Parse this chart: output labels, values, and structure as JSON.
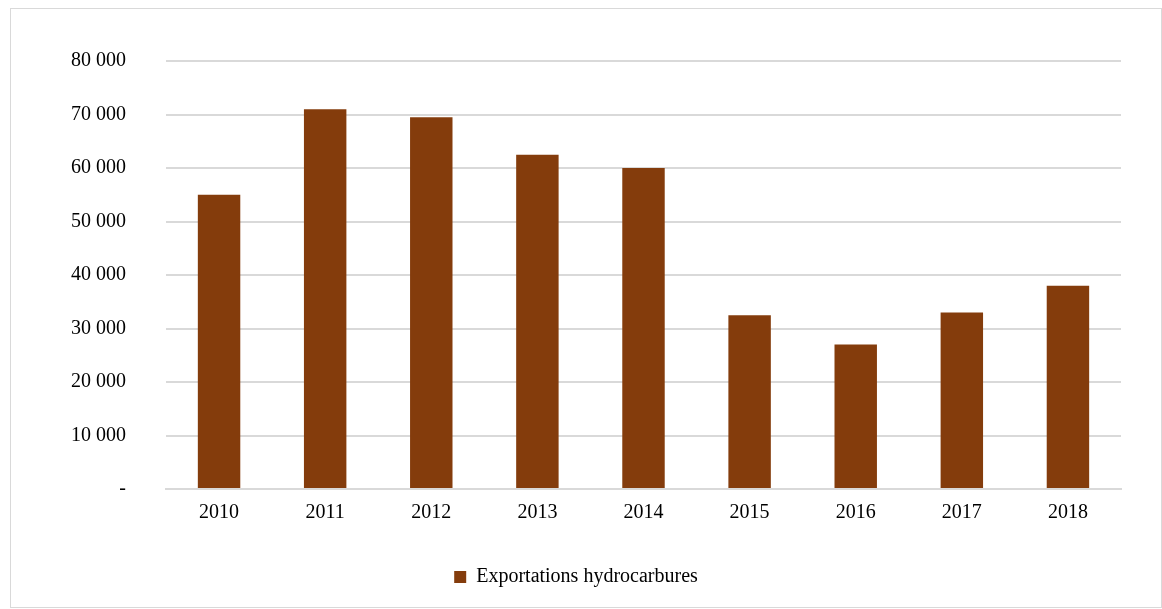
{
  "chart_data": {
    "type": "bar",
    "categories": [
      "2010",
      "2011",
      "2012",
      "2013",
      "2014",
      "2015",
      "2016",
      "2017",
      "2018"
    ],
    "series": [
      {
        "name": "Exportations hydrocarbures",
        "color": "#843c0c",
        "values": [
          55000,
          71000,
          69500,
          62500,
          60000,
          32500,
          27000,
          33000,
          38000
        ]
      }
    ],
    "ylim": [
      0,
      80000
    ],
    "yticks": [
      {
        "value": 0,
        "label": "-"
      },
      {
        "value": 10000,
        "label": "10 000"
      },
      {
        "value": 20000,
        "label": "20 000"
      },
      {
        "value": 30000,
        "label": "30 000"
      },
      {
        "value": 40000,
        "label": "40 000"
      },
      {
        "value": 50000,
        "label": "50 000"
      },
      {
        "value": 60000,
        "label": "60 000"
      },
      {
        "value": 70000,
        "label": "70 000"
      },
      {
        "value": 80000,
        "label": "80 000"
      }
    ],
    "grid": "y",
    "legend": "bottom"
  }
}
